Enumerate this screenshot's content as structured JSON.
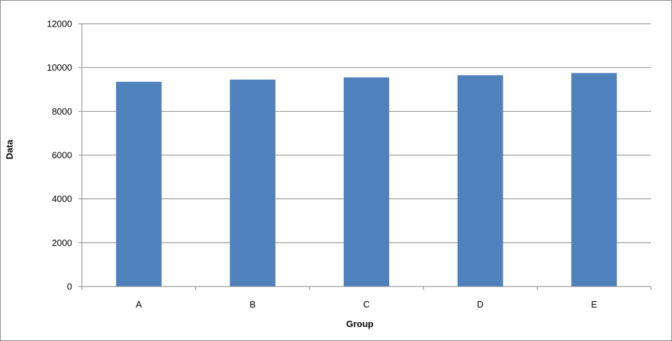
{
  "chart_data": {
    "type": "bar",
    "title": "",
    "xlabel": "Group",
    "ylabel": "Data",
    "categories": [
      "A",
      "B",
      "C",
      "D",
      "E"
    ],
    "values": [
      9350,
      9450,
      9550,
      9650,
      9750
    ],
    "ylim": [
      0,
      12000
    ],
    "yticks": [
      "0",
      "2000",
      "4000",
      "6000",
      "8000",
      "10000",
      "12000"
    ],
    "grid": true,
    "legend": "none",
    "bar_color": "#4f81bd",
    "grid_color": "#868686"
  }
}
